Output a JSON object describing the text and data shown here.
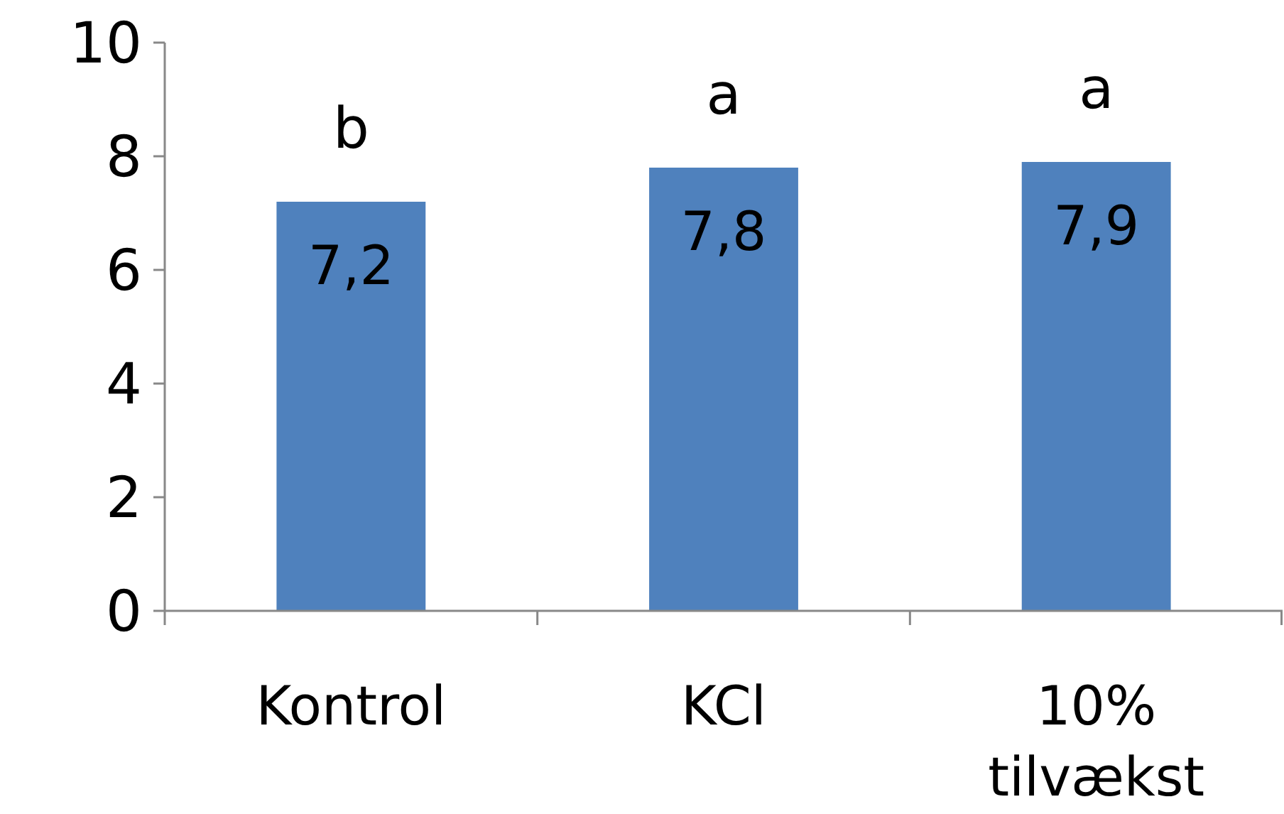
{
  "chart_data": {
    "type": "bar",
    "categories": [
      "Kontrol",
      "KCl",
      "10% tilvækst"
    ],
    "values": [
      7.2,
      7.8,
      7.9
    ],
    "value_labels": [
      "7,2",
      "7,8",
      "7,9"
    ],
    "color": "#4f81bd",
    "ylim": [
      0,
      10
    ],
    "yticks": [
      0,
      2,
      4,
      6,
      8,
      10
    ],
    "grid": false,
    "annotations": [
      "b",
      "a",
      "a"
    ]
  }
}
